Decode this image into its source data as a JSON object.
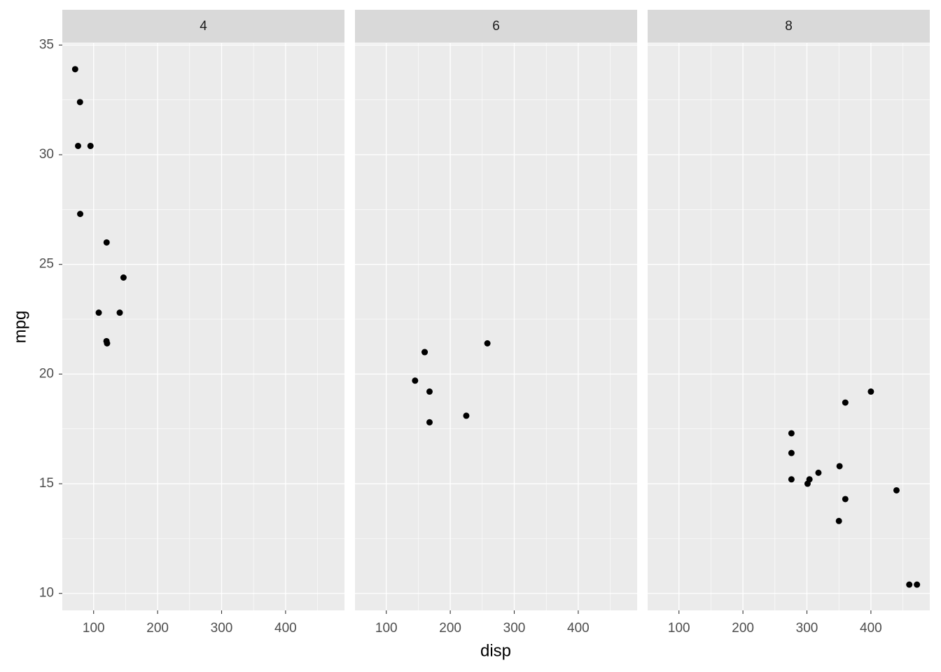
{
  "chart_data": {
    "type": "scatter",
    "xlabel": "disp",
    "ylabel": "mpg",
    "color": "#000000",
    "xlim": [
      51.05,
      492.05
    ],
    "xticks": [
      100,
      200,
      300,
      400
    ],
    "ylim": [
      9.225,
      35.075
    ],
    "yticks": [
      10,
      15,
      20,
      25,
      30,
      35
    ],
    "grid": true,
    "panels": [
      {
        "title": "4",
        "x": [
          108,
          146.7,
          140.8,
          78.7,
          75.7,
          71.1,
          120.1,
          79,
          120.3,
          95.1,
          121
        ],
        "values": [
          22.8,
          24.4,
          22.8,
          32.4,
          30.4,
          33.9,
          21.5,
          27.3,
          26.0,
          30.4,
          21.4
        ]
      },
      {
        "title": "6",
        "x": [
          160,
          160,
          258,
          225,
          167.6,
          167.6,
          145
        ],
        "values": [
          21,
          21,
          21.4,
          18.1,
          19.2,
          17.8,
          19.7
        ]
      },
      {
        "title": "8",
        "x": [
          360,
          360,
          275.8,
          275.8,
          275.8,
          472,
          460,
          440,
          318,
          304,
          350,
          400,
          351,
          301
        ],
        "values": [
          18.7,
          14.3,
          16.4,
          17.3,
          15.2,
          10.4,
          10.4,
          14.7,
          15.5,
          15.2,
          13.3,
          19.2,
          15.8,
          15.0
        ]
      }
    ]
  }
}
